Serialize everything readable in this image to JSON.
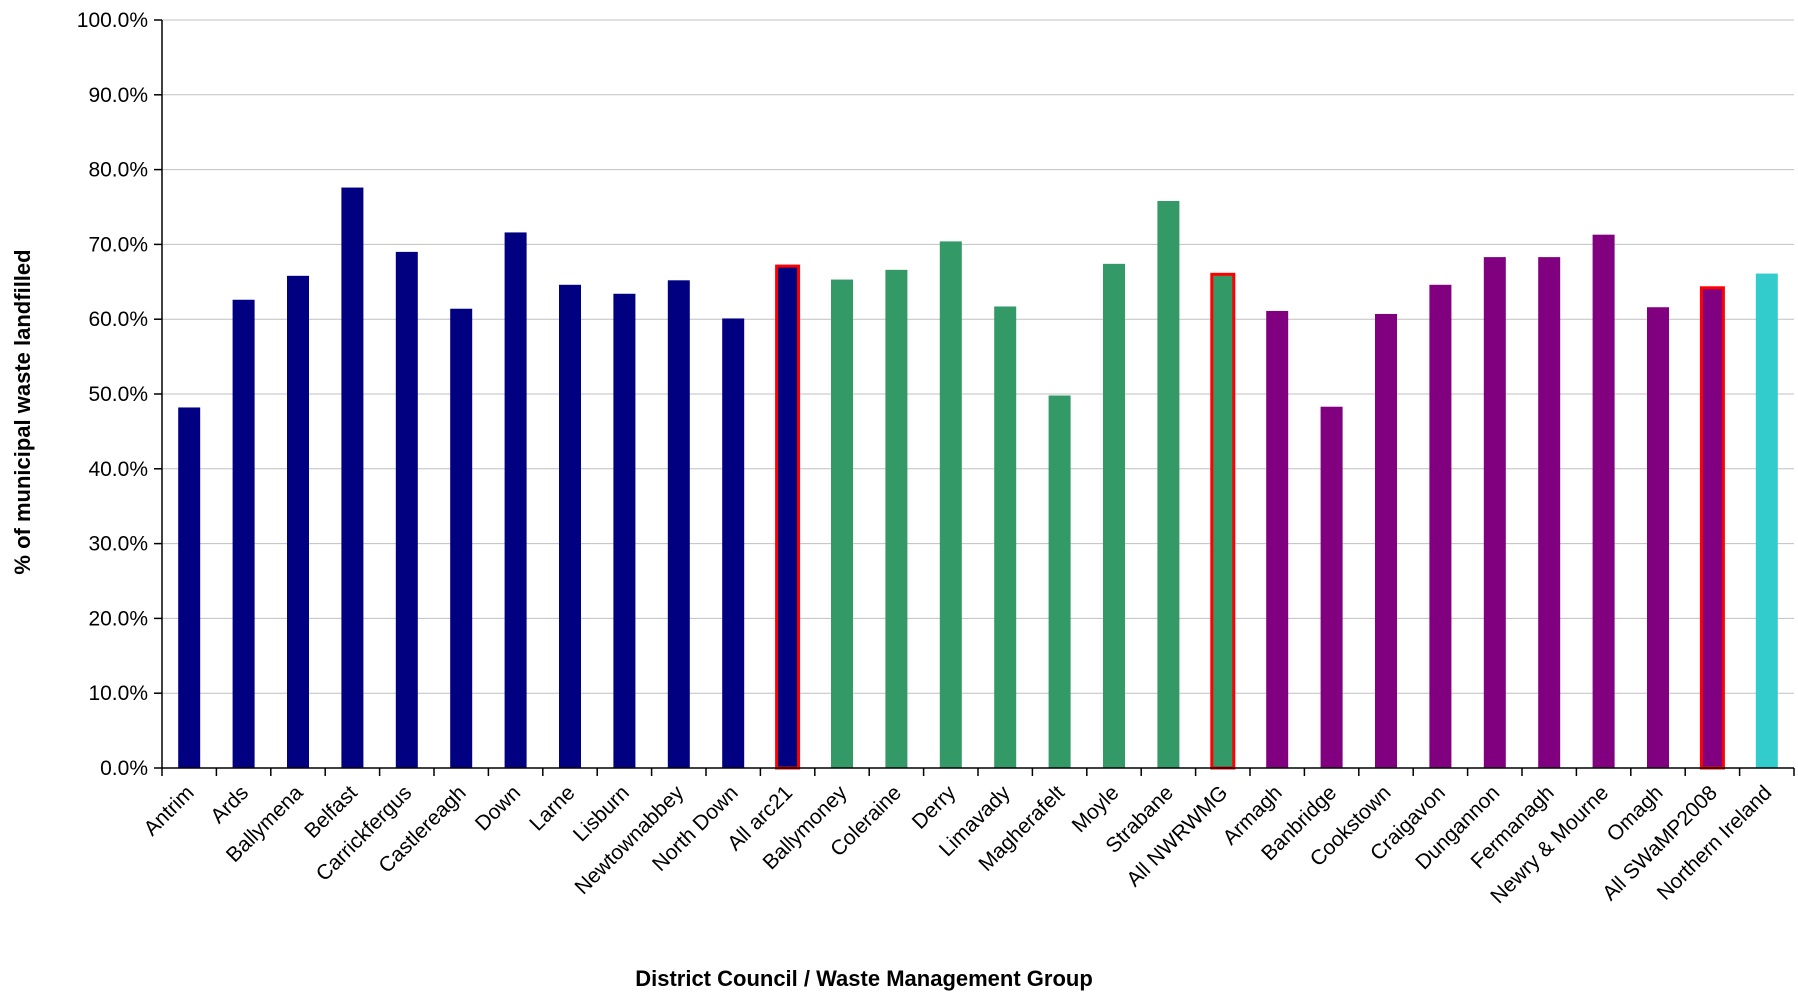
{
  "chart_data": {
    "type": "bar",
    "title": "",
    "xlabel": "District Council / Waste Management Group",
    "ylabel": "% of municipal waste landfilled",
    "ylim": [
      0,
      100
    ],
    "yticks": [
      "0.0%",
      "10.0%",
      "20.0%",
      "30.0%",
      "40.0%",
      "50.0%",
      "60.0%",
      "70.0%",
      "80.0%",
      "90.0%",
      "100.0%"
    ],
    "grid": true,
    "legend": "none",
    "colors": {
      "arc21": "#000080",
      "nwrwmg": "#339966",
      "swamp2008": "#800080",
      "northern_ireland": "#33CCCC",
      "highlight_border": "#FF0000",
      "gridline": "#C0C0C0",
      "axis": "#000000"
    },
    "categories": [
      "Antrim",
      "Ards",
      "Ballymena",
      "Belfast",
      "Carrickfergus",
      "Castlereagh",
      "Down",
      "Larne",
      "Lisburn",
      "Newtownabbey",
      "North Down",
      "All arc21",
      "Ballymoney",
      "Coleraine",
      "Derry",
      "Limavady",
      "Magherafelt",
      "Moyle",
      "Strabane",
      "All NWRWMG",
      "Armagh",
      "Banbridge",
      "Cookstown",
      "Craigavon",
      "Dungannon",
      "Fermanagh",
      "Newry & Mourne",
      "Omagh",
      "All SWaMP2008",
      "Northern Ireland"
    ],
    "values": [
      48.2,
      62.6,
      65.8,
      77.6,
      69.0,
      61.4,
      71.6,
      64.6,
      63.4,
      65.2,
      60.1,
      67.1,
      65.3,
      66.6,
      70.4,
      61.7,
      49.8,
      67.4,
      75.8,
      66.0,
      61.1,
      48.3,
      60.7,
      64.6,
      68.3,
      68.3,
      71.3,
      61.6,
      64.2,
      66.1
    ],
    "groups": [
      "arc21",
      "arc21",
      "arc21",
      "arc21",
      "arc21",
      "arc21",
      "arc21",
      "arc21",
      "arc21",
      "arc21",
      "arc21",
      "arc21",
      "nwrwmg",
      "nwrwmg",
      "nwrwmg",
      "nwrwmg",
      "nwrwmg",
      "nwrwmg",
      "nwrwmg",
      "nwrwmg",
      "swamp2008",
      "swamp2008",
      "swamp2008",
      "swamp2008",
      "swamp2008",
      "swamp2008",
      "swamp2008",
      "swamp2008",
      "swamp2008",
      "northern_ireland"
    ],
    "highlighted": [
      "All arc21",
      "All NWRWMG",
      "All SWaMP2008"
    ]
  }
}
